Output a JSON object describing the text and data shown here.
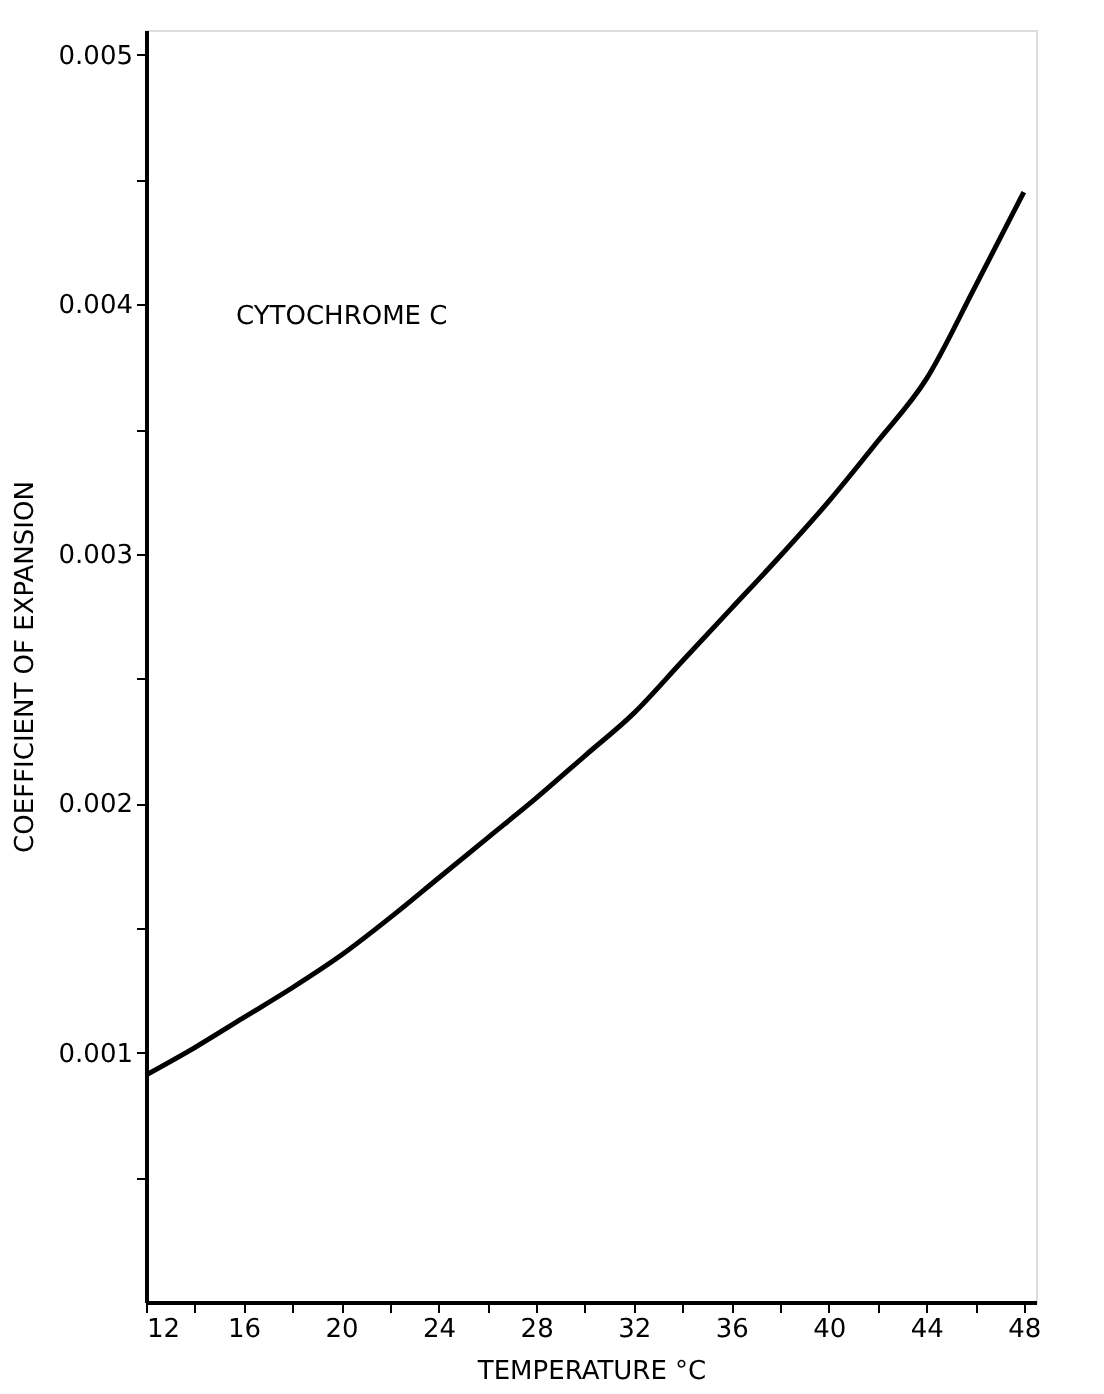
{
  "chart_data": {
    "type": "line",
    "xlabel": "TEMPERATURE   °C",
    "ylabel": "COEFFICIENT OF EXPANSION",
    "annotations": [
      "CYTOCHROME C"
    ],
    "x": [
      12,
      14,
      16,
      18,
      20,
      22,
      24,
      26,
      28,
      30,
      32,
      34,
      36,
      38,
      40,
      42,
      44,
      46,
      48
    ],
    "series": [
      {
        "color": "#000000",
        "values": [
          0.00091,
          0.00102,
          0.00114,
          0.00126,
          0.00139,
          0.00154,
          0.0017,
          0.00186,
          0.00202,
          0.00219,
          0.00236,
          0.00257,
          0.00278,
          0.00299,
          0.00321,
          0.00345,
          0.0037,
          0.00407,
          0.00445
        ]
      }
    ],
    "xlim": [
      12,
      48.5
    ],
    "xticks": [
      12,
      {
        "value": 14,
        "label": null
      },
      16,
      {
        "value": 18,
        "label": null
      },
      20,
      {
        "value": 22,
        "label": null
      },
      24,
      {
        "value": 26,
        "label": null
      },
      28,
      {
        "value": 30,
        "label": null
      },
      32,
      {
        "value": 34,
        "label": null
      },
      36,
      {
        "value": 38,
        "label": null
      },
      40,
      {
        "value": 42,
        "label": null
      },
      44,
      {
        "value": 46,
        "label": null
      },
      48
    ],
    "ylim": [
      0,
      0.0051
    ],
    "yticks": [
      {
        "value": 0.0005,
        "label": null
      },
      0.001,
      {
        "value": 0.0015,
        "label": null
      },
      0.002,
      {
        "value": 0.0025,
        "label": null
      },
      0.003,
      {
        "value": 0.0035,
        "label": null
      },
      0.004,
      {
        "value": 0.0045,
        "label": null
      },
      0.005
    ],
    "grid": false,
    "marker": "none",
    "line_style": "solid"
  }
}
